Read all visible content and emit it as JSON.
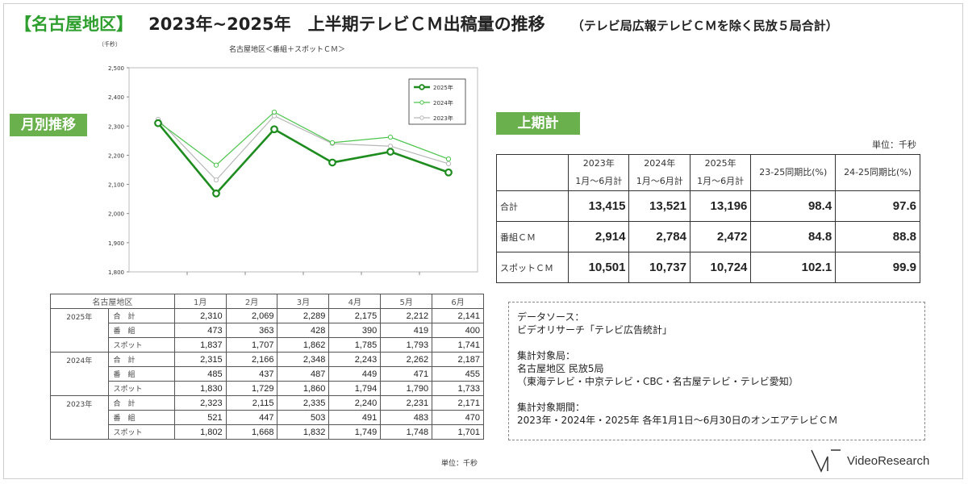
{
  "title": {
    "region": "【名古屋地区】",
    "main": "2023年~2025年　上半期テレビＣＭ出稿量の推移",
    "note": "（テレビ局広報テレビＣＭを除く民放５局合計）"
  },
  "badges": {
    "monthly": "月別推移",
    "half": "上期計"
  },
  "chart_unit": "（千秒）",
  "chart_data": {
    "type": "line",
    "title": "名古屋地区＜番組＋スポットＣＭ＞",
    "categories": [
      "1月",
      "2月",
      "3月",
      "4月",
      "5月",
      "6月"
    ],
    "ylim": [
      1800,
      2500
    ],
    "yticks": [
      "1,800",
      "1,900",
      "2,000",
      "2,100",
      "2,200",
      "2,300",
      "2,400",
      "2,500"
    ],
    "ytick_values": [
      1800,
      1900,
      2000,
      2100,
      2200,
      2300,
      2400,
      2500
    ],
    "legend_position": "top-right",
    "series": [
      {
        "name": "2025年",
        "color": "#1e8c1e",
        "values": [
          2310,
          2069,
          2289,
          2175,
          2212,
          2141
        ]
      },
      {
        "name": "2024年",
        "color": "#4cc44c",
        "values": [
          2315,
          2166,
          2348,
          2243,
          2262,
          2187
        ]
      },
      {
        "name": "2023年",
        "color": "#b8b8b8",
        "values": [
          2323,
          2115,
          2335,
          2240,
          2231,
          2171
        ]
      }
    ]
  },
  "monthly_table": {
    "corner": "名古屋地区",
    "months": [
      "1月",
      "2月",
      "3月",
      "4月",
      "5月",
      "6月"
    ],
    "years": [
      {
        "year": "2025年",
        "rows": [
          {
            "label": "合　計",
            "values": [
              "2,310",
              "2,069",
              "2,289",
              "2,175",
              "2,212",
              "2,141"
            ]
          },
          {
            "label": "番　組",
            "values": [
              "473",
              "363",
              "428",
              "390",
              "419",
              "400"
            ]
          },
          {
            "label": "スポット",
            "values": [
              "1,837",
              "1,707",
              "1,862",
              "1,785",
              "1,793",
              "1,741"
            ]
          }
        ]
      },
      {
        "year": "2024年",
        "rows": [
          {
            "label": "合　計",
            "values": [
              "2,315",
              "2,166",
              "2,348",
              "2,243",
              "2,262",
              "2,187"
            ]
          },
          {
            "label": "番　組",
            "values": [
              "485",
              "437",
              "487",
              "449",
              "471",
              "455"
            ]
          },
          {
            "label": "スポット",
            "values": [
              "1,830",
              "1,729",
              "1,860",
              "1,794",
              "1,790",
              "1,733"
            ]
          }
        ]
      },
      {
        "year": "2023年",
        "rows": [
          {
            "label": "合　計",
            "values": [
              "2,323",
              "2,115",
              "2,335",
              "2,240",
              "2,231",
              "2,171"
            ]
          },
          {
            "label": "番　組",
            "values": [
              "521",
              "447",
              "503",
              "491",
              "483",
              "470"
            ]
          },
          {
            "label": "スポット",
            "values": [
              "1,802",
              "1,668",
              "1,832",
              "1,749",
              "1,748",
              "1,701"
            ]
          }
        ]
      }
    ],
    "unit": "単位：千秒"
  },
  "half_table": {
    "unit": "単位：千秒",
    "headers": [
      {
        "line1": "2023年",
        "line2": "1月～6月計"
      },
      {
        "line1": "2024年",
        "line2": "1月～6月計"
      },
      {
        "line1": "2025年",
        "line2": "1月～6月計"
      },
      {
        "line1": "23-25同期比(%)",
        "line2": ""
      },
      {
        "line1": "24-25同期比(%)",
        "line2": ""
      }
    ],
    "rows": [
      {
        "label": "合計",
        "values": [
          "13,415",
          "13,521",
          "13,196",
          "98.4",
          "97.6"
        ]
      },
      {
        "label": "番組ＣＭ",
        "values": [
          "2,914",
          "2,784",
          "2,472",
          "84.8",
          "88.8"
        ]
      },
      {
        "label": "スポットＣＭ",
        "values": [
          "10,501",
          "10,737",
          "10,724",
          "102.1",
          "99.9"
        ]
      }
    ]
  },
  "source": {
    "label1": "データソース：",
    "text1": "ビデオリサーチ「テレビ広告統計」",
    "label2": "集計対象局：",
    "text2a": "名古屋地区 民放5局",
    "text2b": "（東海テレビ・中京テレビ・CBC・名古屋テレビ・テレビ愛知）",
    "label3": "集計対象期間：",
    "text3": "2023年・2024年・2025年 各年1月1日～6月30日のオンエアテレビＣＭ"
  },
  "logo": "VideoResearch"
}
